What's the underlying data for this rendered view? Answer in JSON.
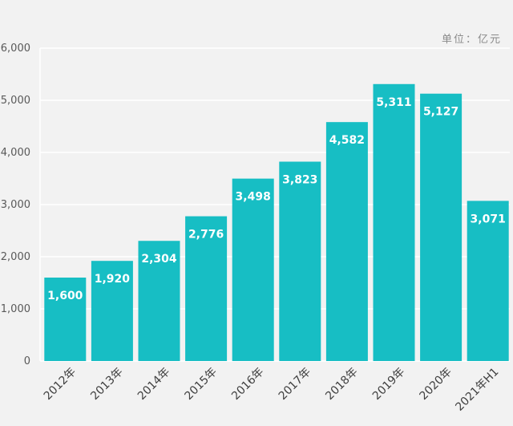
{
  "chart_data": {
    "type": "bar",
    "unit_label": "单位：亿元",
    "categories": [
      "2012年",
      "2013年",
      "2014年",
      "2015年",
      "2016年",
      "2017年",
      "2018年",
      "2019年",
      "2020年",
      "2021年H1"
    ],
    "values": [
      1600,
      1920,
      2304,
      2776,
      3498,
      3823,
      4582,
      5311,
      5127,
      3071
    ],
    "value_labels": [
      "1,600",
      "1,920",
      "2,304",
      "2,776",
      "3,498",
      "3,823",
      "4,582",
      "5,311",
      "5,127",
      "3,071"
    ],
    "y_ticks": [
      0,
      1000,
      2000,
      3000,
      4000,
      5000,
      6000
    ],
    "y_tick_labels": [
      "0",
      "1,000",
      "2,000",
      "3,000",
      "4,000",
      "5,000",
      "6,000"
    ],
    "ylim": [
      0,
      6000
    ],
    "grid": true,
    "bar_color": "#17bec4",
    "grid_color": "#ffffff"
  }
}
